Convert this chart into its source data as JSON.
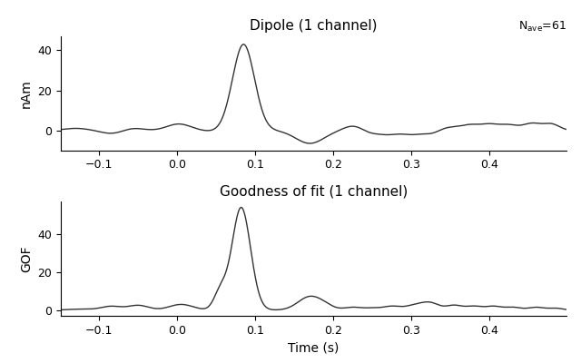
{
  "title1": "Dipole (1 channel)",
  "title2": "Goodness of fit (1 channel)",
  "nave_text": "N$_{ave}$=61",
  "xlabel": "Time (s)",
  "ylabel1": "nAm",
  "ylabel2": "GOF",
  "xlim": [
    -0.149,
    0.499
  ],
  "ylim1": [
    -10,
    47
  ],
  "ylim2": [
    -3,
    57
  ],
  "xticks": [
    -0.1,
    0.0,
    0.1,
    0.2,
    0.3,
    0.4
  ],
  "yticks1": [
    0,
    20,
    40
  ],
  "yticks2": [
    0,
    20,
    40
  ],
  "line_color": "#333333",
  "line_width": 1.0,
  "background_color": "#ffffff"
}
